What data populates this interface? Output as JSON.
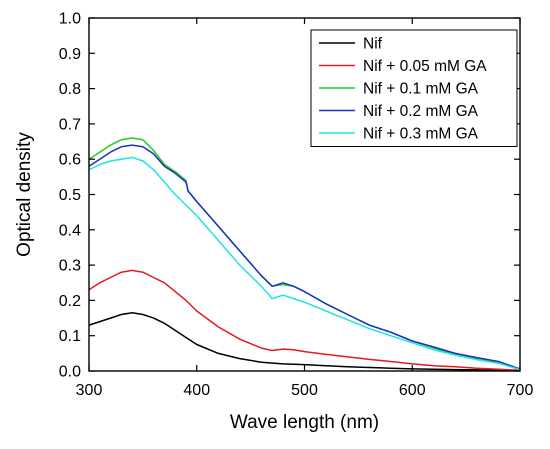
{
  "chart_data": {
    "type": "line",
    "xlabel": "Wave length (nm)",
    "ylabel": "Optical density",
    "xlim": [
      300,
      700
    ],
    "ylim": [
      0.0,
      1.0
    ],
    "xticks": [
      300,
      400,
      500,
      600,
      700
    ],
    "yticks": [
      0.0,
      0.1,
      0.2,
      0.3,
      0.4,
      0.5,
      0.6,
      0.7,
      0.8,
      0.9,
      1.0
    ],
    "ytick_labels": [
      "0.0",
      "0.1",
      "0.2",
      "0.3",
      "0.4",
      "0.5",
      "0.6",
      "0.7",
      "0.8",
      "0.9",
      "1.0"
    ],
    "grid": false,
    "legend": "top-right",
    "series": [
      {
        "name": "Nif",
        "color": "#000000",
        "x": [
          300,
          310,
          320,
          330,
          340,
          350,
          360,
          370,
          380,
          390,
          400,
          420,
          440,
          460,
          480,
          500,
          520,
          540,
          560,
          580,
          600,
          620,
          640,
          660,
          680,
          700
        ],
        "y": [
          0.13,
          0.14,
          0.15,
          0.16,
          0.165,
          0.16,
          0.15,
          0.135,
          0.115,
          0.095,
          0.075,
          0.05,
          0.035,
          0.025,
          0.02,
          0.018,
          0.015,
          0.012,
          0.01,
          0.008,
          0.006,
          0.005,
          0.004,
          0.003,
          0.002,
          0.001
        ]
      },
      {
        "name": "Nif + 0.05 mM GA",
        "color": "#e41a1c",
        "x": [
          300,
          310,
          320,
          330,
          340,
          350,
          360,
          370,
          380,
          390,
          400,
          420,
          440,
          460,
          470,
          480,
          490,
          500,
          520,
          540,
          560,
          580,
          600,
          620,
          640,
          660,
          680,
          700
        ],
        "y": [
          0.23,
          0.25,
          0.265,
          0.28,
          0.285,
          0.28,
          0.265,
          0.25,
          0.225,
          0.2,
          0.17,
          0.125,
          0.09,
          0.065,
          0.058,
          0.062,
          0.06,
          0.055,
          0.047,
          0.04,
          0.033,
          0.027,
          0.02,
          0.015,
          0.012,
          0.008,
          0.005,
          0.002
        ]
      },
      {
        "name": "Nif + 0.1 mM GA",
        "color": "#1ed01e",
        "x": [
          300,
          310,
          320,
          330,
          340,
          350,
          360,
          370,
          380,
          390,
          392,
          400,
          420,
          440,
          460,
          470,
          480,
          490,
          500,
          520,
          540,
          560,
          580,
          600,
          620,
          640,
          660,
          680,
          700
        ],
        "y": [
          0.6,
          0.62,
          0.64,
          0.655,
          0.66,
          0.655,
          0.625,
          0.585,
          0.565,
          0.54,
          0.51,
          0.48,
          0.41,
          0.34,
          0.27,
          0.24,
          0.245,
          0.24,
          0.225,
          0.19,
          0.16,
          0.13,
          0.11,
          0.085,
          0.065,
          0.048,
          0.035,
          0.025,
          0.005
        ]
      },
      {
        "name": "Nif + 0.2 mM GA",
        "color": "#1f2fc8",
        "x": [
          300,
          310,
          320,
          330,
          340,
          350,
          360,
          370,
          380,
          390,
          392,
          400,
          420,
          440,
          460,
          470,
          480,
          490,
          500,
          520,
          540,
          560,
          580,
          600,
          620,
          640,
          660,
          680,
          700
        ],
        "y": [
          0.58,
          0.6,
          0.62,
          0.635,
          0.64,
          0.635,
          0.615,
          0.58,
          0.56,
          0.535,
          0.51,
          0.48,
          0.41,
          0.34,
          0.27,
          0.24,
          0.25,
          0.24,
          0.225,
          0.19,
          0.16,
          0.13,
          0.11,
          0.085,
          0.068,
          0.05,
          0.038,
          0.027,
          0.006
        ]
      },
      {
        "name": "Nif + 0.3 mM GA",
        "color": "#22e4e4",
        "x": [
          300,
          310,
          320,
          330,
          340,
          350,
          360,
          370,
          380,
          390,
          400,
          420,
          440,
          460,
          470,
          480,
          490,
          500,
          520,
          540,
          560,
          580,
          600,
          620,
          640,
          660,
          680,
          700
        ],
        "y": [
          0.57,
          0.585,
          0.595,
          0.6,
          0.605,
          0.595,
          0.57,
          0.535,
          0.5,
          0.47,
          0.44,
          0.37,
          0.3,
          0.24,
          0.205,
          0.215,
          0.205,
          0.195,
          0.17,
          0.145,
          0.12,
          0.1,
          0.08,
          0.06,
          0.045,
          0.032,
          0.022,
          0.004
        ]
      }
    ]
  }
}
